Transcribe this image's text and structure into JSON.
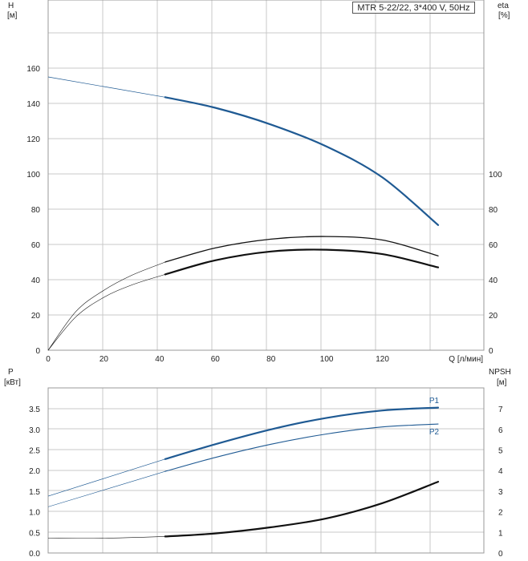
{
  "colors": {
    "blue": "#1f5a93",
    "black": "#111111",
    "grid": "#c8c8c8",
    "frame": "#999999"
  },
  "legend": "MTR 5-22/22, 3*400 V, 50Hz",
  "chart_data": [
    {
      "type": "line",
      "panel": "top",
      "grid": true,
      "left_axis": {
        "label_line1": "H",
        "label_line2": "[м]",
        "range": [
          0,
          180
        ],
        "ticks": [
          0,
          20,
          40,
          60,
          80,
          100,
          120,
          140,
          160
        ]
      },
      "right_axis": {
        "label_line1": "eta",
        "label_line2": "[%]",
        "range": [
          0,
          180
        ],
        "ticks": [
          0,
          20,
          40,
          60,
          80,
          100
        ]
      },
      "x_axis": {
        "label": "Q [л/мин]",
        "range": [
          0,
          157
        ],
        "ticks": [
          0,
          20,
          40,
          60,
          80,
          100,
          120
        ]
      },
      "series": [
        {
          "axis": "left",
          "color": "blue",
          "width": 2.2,
          "thin_width": 0.7,
          "operating_start": 42,
          "x": [
            0,
            42,
            60,
            80,
            100,
            120,
            140
          ],
          "y": [
            155,
            143.5,
            137.5,
            128,
            115.5,
            98,
            71
          ]
        },
        {
          "axis": "right",
          "color": "black",
          "width": 1.3,
          "thin_width": 0.6,
          "operating_start": 42,
          "x": [
            0,
            10,
            20,
            30,
            42,
            60,
            80,
            100,
            120,
            140
          ],
          "y": [
            0,
            22,
            34,
            42.5,
            50,
            58,
            63,
            64.5,
            62.5,
            53.5
          ]
        },
        {
          "axis": "right",
          "color": "black",
          "width": 2.2,
          "thin_width": 0.6,
          "operating_start": 42,
          "x": [
            0,
            10,
            20,
            30,
            42,
            60,
            80,
            100,
            120,
            140
          ],
          "y": [
            0,
            19,
            30,
            37,
            43,
            51,
            56,
            57,
            54.5,
            47
          ]
        }
      ]
    },
    {
      "type": "line",
      "panel": "bottom",
      "grid": true,
      "left_axis": {
        "label_line1": "P",
        "label_line2": "[кВт]",
        "range": [
          0,
          4
        ],
        "ticks": [
          "0.0",
          "0.5",
          "1.0",
          "1.5",
          "2.0",
          "2.5",
          "3.0",
          "3.5"
        ]
      },
      "right_axis": {
        "label_line1": "NPSH",
        "label_line2": "[м]",
        "range": [
          0,
          8
        ],
        "ticks": [
          0,
          1,
          2,
          3,
          4,
          5,
          6,
          7
        ]
      },
      "x_axis": {
        "range": [
          0,
          157
        ]
      },
      "series": [
        {
          "name": "P1",
          "axis": "left",
          "color": "blue",
          "width": 2.2,
          "thin_width": 0.7,
          "operating_start": 42,
          "x": [
            0,
            42,
            60,
            80,
            100,
            120,
            140
          ],
          "y": [
            1.38,
            2.28,
            2.64,
            3.0,
            3.28,
            3.46,
            3.53
          ]
        },
        {
          "name": "P2",
          "axis": "left",
          "color": "blue",
          "width": 1.1,
          "thin_width": 0.6,
          "operating_start": 42,
          "x": [
            0,
            42,
            60,
            80,
            100,
            120,
            140
          ],
          "y": [
            1.12,
            1.98,
            2.32,
            2.64,
            2.89,
            3.06,
            3.13
          ]
        },
        {
          "axis": "right",
          "color": "black",
          "width": 2.2,
          "thin_width": 0.6,
          "operating_start": 42,
          "x": [
            0,
            20,
            42,
            60,
            80,
            100,
            120,
            140
          ],
          "y": [
            0.72,
            0.72,
            0.8,
            0.95,
            1.25,
            1.68,
            2.42,
            3.46
          ]
        }
      ]
    }
  ]
}
